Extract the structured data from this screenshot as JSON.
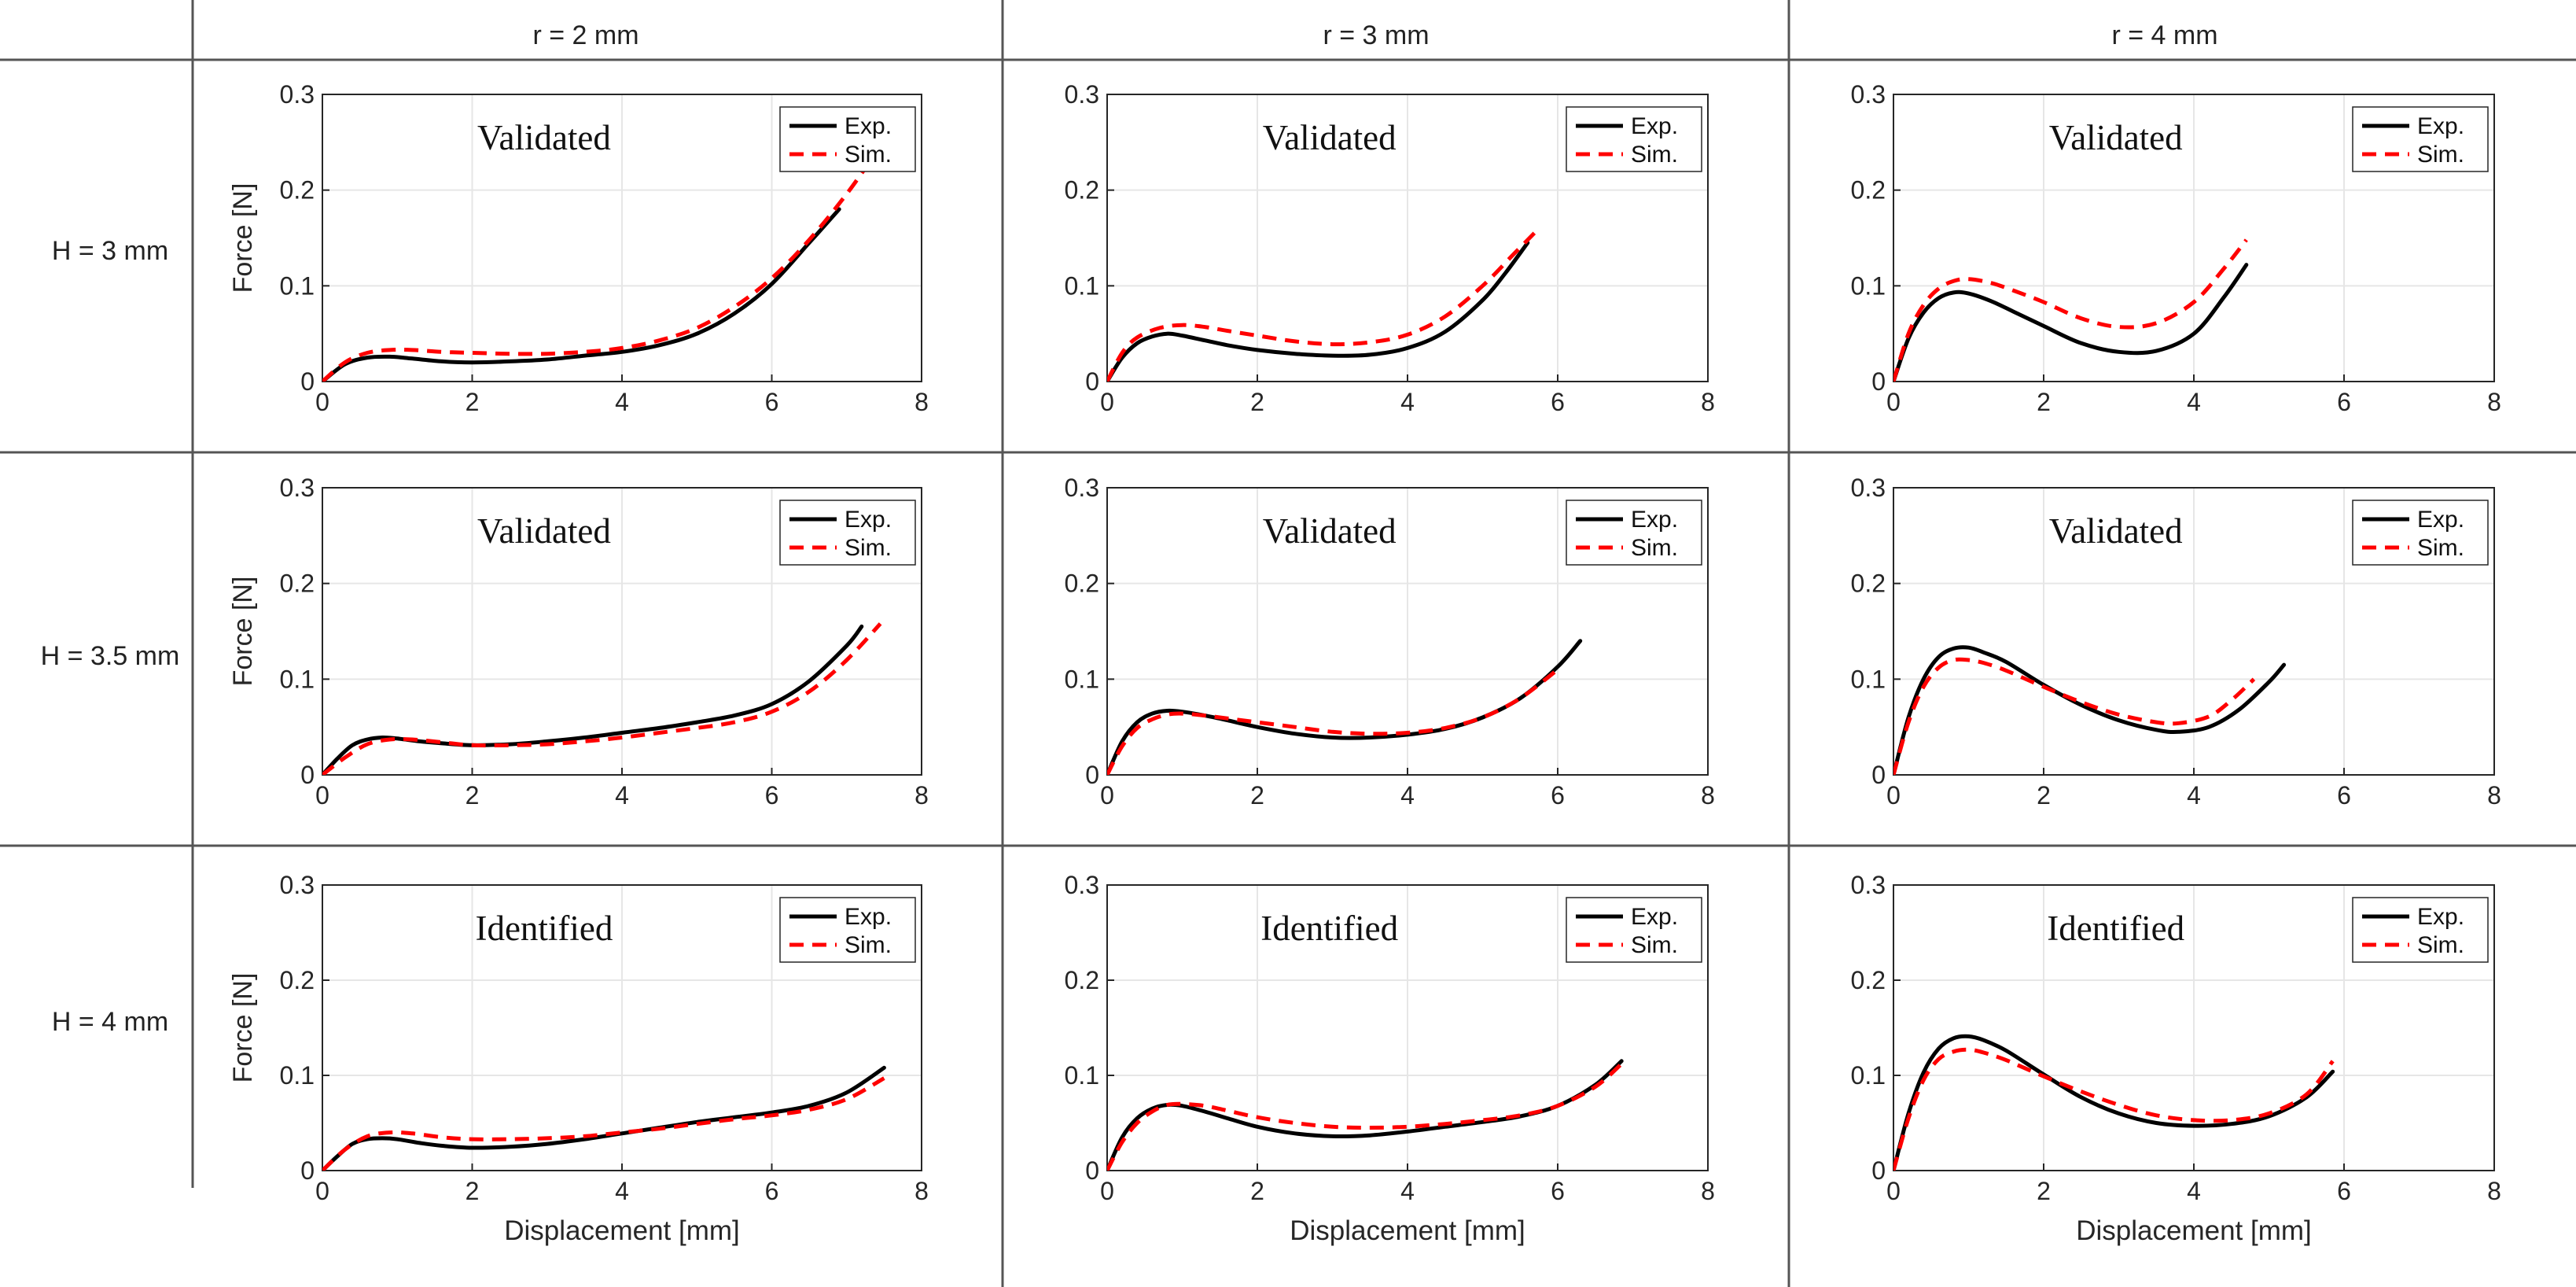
{
  "figure": {
    "column_headers": [
      "r = 2 mm",
      "r = 3 mm",
      "r = 4 mm"
    ],
    "row_headers": [
      "H = 3 mm",
      "H = 3.5 mm",
      "H = 4 mm"
    ],
    "ylabel": "Force [N]",
    "xlabel": "Displacement [mm]",
    "legend": [
      "Exp.",
      "Sim."
    ],
    "colors": {
      "exp": "#000000",
      "sim": "#ff0000",
      "grid": "#e6e6e6",
      "axis": "#262626"
    }
  },
  "chart_data": [
    {
      "type": "line",
      "row": 0,
      "col": 0,
      "annotation": "Validated",
      "xlim": [
        0,
        8
      ],
      "ylim": [
        0,
        0.3
      ],
      "xticks": [
        0,
        2,
        4,
        6,
        8
      ],
      "yticks": [
        0,
        0.1,
        0.2,
        0.3
      ],
      "ylabel": "Force [N]",
      "xlabel": "",
      "series": [
        {
          "name": "Exp.",
          "x": [
            0,
            0.3,
            0.6,
            0.9,
            1.2,
            1.6,
            2,
            2.5,
            3,
            3.5,
            4,
            4.5,
            5,
            5.5,
            6,
            6.5,
            6.9
          ],
          "y": [
            0,
            0.018,
            0.025,
            0.026,
            0.024,
            0.021,
            0.02,
            0.021,
            0.023,
            0.027,
            0.031,
            0.038,
            0.05,
            0.071,
            0.102,
            0.145,
            0.18
          ]
        },
        {
          "name": "Sim.",
          "x": [
            0,
            0.3,
            0.6,
            0.9,
            1.2,
            1.6,
            2,
            2.5,
            3,
            3.5,
            4,
            4.5,
            5,
            5.5,
            6,
            6.5,
            7,
            7.4
          ],
          "y": [
            0,
            0.02,
            0.03,
            0.033,
            0.033,
            0.031,
            0.03,
            0.029,
            0.029,
            0.031,
            0.035,
            0.043,
            0.056,
            0.078,
            0.108,
            0.148,
            0.196,
            0.24
          ]
        }
      ]
    },
    {
      "type": "line",
      "row": 0,
      "col": 1,
      "annotation": "Validated",
      "xlim": [
        0,
        8
      ],
      "ylim": [
        0,
        0.3
      ],
      "xticks": [
        0,
        2,
        4,
        6,
        8
      ],
      "yticks": [
        0,
        0.1,
        0.2,
        0.3
      ],
      "ylabel": "",
      "xlabel": "",
      "series": [
        {
          "name": "Exp.",
          "x": [
            0,
            0.2,
            0.4,
            0.6,
            0.8,
            1,
            1.3,
            1.6,
            2,
            2.5,
            3,
            3.5,
            4,
            4.5,
            5,
            5.3,
            5.6
          ],
          "y": [
            0,
            0.025,
            0.04,
            0.047,
            0.05,
            0.048,
            0.043,
            0.038,
            0.033,
            0.029,
            0.027,
            0.028,
            0.035,
            0.052,
            0.085,
            0.113,
            0.145
          ]
        },
        {
          "name": "Sim.",
          "x": [
            0,
            0.2,
            0.4,
            0.7,
            1,
            1.3,
            1.6,
            2,
            2.5,
            3,
            3.5,
            4,
            4.5,
            5,
            5.4,
            5.7
          ],
          "y": [
            0,
            0.03,
            0.046,
            0.056,
            0.059,
            0.057,
            0.053,
            0.048,
            0.042,
            0.039,
            0.041,
            0.049,
            0.068,
            0.1,
            0.132,
            0.156
          ]
        }
      ]
    },
    {
      "type": "line",
      "row": 0,
      "col": 2,
      "annotation": "Validated",
      "xlim": [
        0,
        8
      ],
      "ylim": [
        0,
        0.3
      ],
      "xticks": [
        0,
        2,
        4,
        6,
        8
      ],
      "yticks": [
        0,
        0.1,
        0.2,
        0.3
      ],
      "ylabel": "",
      "xlabel": "",
      "series": [
        {
          "name": "Exp.",
          "x": [
            0,
            0.2,
            0.4,
            0.6,
            0.8,
            1,
            1.3,
            1.6,
            2,
            2.5,
            3,
            3.5,
            4,
            4.4,
            4.7
          ],
          "y": [
            0,
            0.045,
            0.072,
            0.087,
            0.093,
            0.092,
            0.084,
            0.073,
            0.058,
            0.04,
            0.031,
            0.032,
            0.05,
            0.088,
            0.122
          ]
        },
        {
          "name": "Sim.",
          "x": [
            0,
            0.2,
            0.4,
            0.6,
            0.8,
            1,
            1.3,
            1.6,
            2,
            2.5,
            3,
            3.5,
            4,
            4.4,
            4.7
          ],
          "y": [
            0,
            0.05,
            0.08,
            0.097,
            0.105,
            0.107,
            0.103,
            0.095,
            0.083,
            0.066,
            0.057,
            0.061,
            0.083,
            0.118,
            0.148
          ]
        }
      ]
    },
    {
      "type": "line",
      "row": 1,
      "col": 0,
      "annotation": "Validated",
      "xlim": [
        0,
        8
      ],
      "ylim": [
        0,
        0.3
      ],
      "xticks": [
        0,
        2,
        4,
        6,
        8
      ],
      "yticks": [
        0,
        0.1,
        0.2,
        0.3
      ],
      "ylabel": "Force [N]",
      "xlabel": "",
      "series": [
        {
          "name": "Exp.",
          "x": [
            0,
            0.2,
            0.4,
            0.6,
            0.8,
            1,
            1.3,
            1.6,
            2,
            2.5,
            3,
            3.5,
            4,
            4.5,
            5,
            5.5,
            6,
            6.5,
            7,
            7.2
          ],
          "y": [
            0,
            0.017,
            0.031,
            0.037,
            0.039,
            0.038,
            0.035,
            0.033,
            0.031,
            0.032,
            0.035,
            0.039,
            0.044,
            0.049,
            0.055,
            0.062,
            0.074,
            0.098,
            0.135,
            0.155
          ]
        },
        {
          "name": "Sim.",
          "x": [
            0,
            0.3,
            0.6,
            0.9,
            1.2,
            1.6,
            2,
            2.5,
            3,
            3.5,
            4,
            4.5,
            5,
            5.5,
            6,
            6.5,
            7,
            7.45
          ],
          "y": [
            0,
            0.018,
            0.032,
            0.037,
            0.037,
            0.034,
            0.031,
            0.031,
            0.032,
            0.035,
            0.039,
            0.044,
            0.049,
            0.055,
            0.066,
            0.087,
            0.12,
            0.158
          ]
        }
      ]
    },
    {
      "type": "line",
      "row": 1,
      "col": 1,
      "annotation": "Validated",
      "xlim": [
        0,
        8
      ],
      "ylim": [
        0,
        0.3
      ],
      "xticks": [
        0,
        2,
        4,
        6,
        8
      ],
      "yticks": [
        0,
        0.1,
        0.2,
        0.3
      ],
      "ylabel": "",
      "xlabel": "",
      "series": [
        {
          "name": "Exp.",
          "x": [
            0,
            0.2,
            0.4,
            0.6,
            0.8,
            1,
            1.3,
            1.6,
            2,
            2.5,
            3,
            3.5,
            4,
            4.5,
            5,
            5.5,
            6,
            6.3
          ],
          "y": [
            0,
            0.035,
            0.055,
            0.064,
            0.067,
            0.066,
            0.062,
            0.057,
            0.05,
            0.043,
            0.039,
            0.039,
            0.042,
            0.048,
            0.06,
            0.08,
            0.113,
            0.14
          ]
        },
        {
          "name": "Sim.",
          "x": [
            0,
            0.2,
            0.4,
            0.6,
            0.8,
            1,
            1.3,
            1.6,
            2,
            2.5,
            3,
            3.5,
            4,
            4.5,
            5,
            5.5,
            6
          ],
          "y": [
            0,
            0.03,
            0.049,
            0.058,
            0.063,
            0.064,
            0.062,
            0.059,
            0.055,
            0.05,
            0.045,
            0.043,
            0.044,
            0.049,
            0.06,
            0.08,
            0.11
          ]
        }
      ]
    },
    {
      "type": "line",
      "row": 1,
      "col": 2,
      "annotation": "Validated",
      "xlim": [
        0,
        8
      ],
      "ylim": [
        0,
        0.3
      ],
      "xticks": [
        0,
        2,
        4,
        6,
        8
      ],
      "yticks": [
        0,
        0.1,
        0.2,
        0.3
      ],
      "ylabel": "",
      "xlabel": "",
      "series": [
        {
          "name": "Exp.",
          "x": [
            0,
            0.2,
            0.4,
            0.6,
            0.8,
            1,
            1.2,
            1.5,
            2,
            2.5,
            3,
            3.5,
            3.8,
            4.2,
            4.6,
            5,
            5.2
          ],
          "y": [
            0,
            0.06,
            0.1,
            0.123,
            0.132,
            0.133,
            0.128,
            0.118,
            0.094,
            0.073,
            0.057,
            0.047,
            0.045,
            0.05,
            0.068,
            0.097,
            0.115
          ]
        },
        {
          "name": "Sim.",
          "x": [
            0,
            0.2,
            0.4,
            0.6,
            0.8,
            1,
            1.2,
            1.5,
            2,
            2.5,
            3,
            3.5,
            3.8,
            4.2,
            4.5,
            4.8
          ],
          "y": [
            0,
            0.055,
            0.092,
            0.112,
            0.12,
            0.12,
            0.117,
            0.109,
            0.092,
            0.076,
            0.063,
            0.055,
            0.054,
            0.061,
            0.078,
            0.1
          ]
        }
      ]
    },
    {
      "type": "line",
      "row": 2,
      "col": 0,
      "annotation": "Identified",
      "xlim": [
        0,
        8
      ],
      "ylim": [
        0,
        0.3
      ],
      "xticks": [
        0,
        2,
        4,
        6,
        8
      ],
      "yticks": [
        0,
        0.1,
        0.2,
        0.3
      ],
      "ylabel": "Force [N]",
      "xlabel": "Displacement [mm]",
      "series": [
        {
          "name": "Exp.",
          "x": [
            0,
            0.2,
            0.4,
            0.6,
            0.8,
            1,
            1.3,
            1.6,
            2,
            2.5,
            3,
            3.5,
            4,
            4.5,
            5,
            5.5,
            6,
            6.5,
            7,
            7.5
          ],
          "y": [
            0,
            0.015,
            0.028,
            0.033,
            0.034,
            0.033,
            0.029,
            0.026,
            0.024,
            0.025,
            0.028,
            0.033,
            0.039,
            0.045,
            0.051,
            0.056,
            0.061,
            0.068,
            0.082,
            0.108
          ]
        },
        {
          "name": "Sim.",
          "x": [
            0,
            0.3,
            0.6,
            0.9,
            1.2,
            1.6,
            2,
            2.5,
            3,
            3.5,
            4,
            4.5,
            5,
            5.5,
            6,
            6.5,
            7,
            7.5
          ],
          "y": [
            0,
            0.022,
            0.036,
            0.04,
            0.039,
            0.035,
            0.033,
            0.033,
            0.034,
            0.036,
            0.04,
            0.044,
            0.049,
            0.054,
            0.058,
            0.064,
            0.075,
            0.097
          ]
        }
      ]
    },
    {
      "type": "line",
      "row": 2,
      "col": 1,
      "annotation": "Identified",
      "xlim": [
        0,
        8
      ],
      "ylim": [
        0,
        0.3
      ],
      "xticks": [
        0,
        2,
        4,
        6,
        8
      ],
      "yticks": [
        0,
        0.1,
        0.2,
        0.3
      ],
      "ylabel": "",
      "xlabel": "Displacement [mm]",
      "series": [
        {
          "name": "Exp.",
          "x": [
            0,
            0.2,
            0.4,
            0.6,
            0.8,
            1,
            1.3,
            1.6,
            2,
            2.5,
            3,
            3.5,
            4,
            4.5,
            5,
            5.5,
            6,
            6.5,
            6.85
          ],
          "y": [
            0,
            0.035,
            0.055,
            0.065,
            0.069,
            0.068,
            0.062,
            0.055,
            0.046,
            0.039,
            0.036,
            0.037,
            0.041,
            0.046,
            0.051,
            0.057,
            0.068,
            0.09,
            0.115
          ]
        },
        {
          "name": "Sim.",
          "x": [
            0,
            0.2,
            0.4,
            0.6,
            0.8,
            1,
            1.3,
            1.6,
            2,
            2.5,
            3,
            3.5,
            4,
            4.5,
            5,
            5.5,
            6,
            6.5,
            6.85
          ],
          "y": [
            0,
            0.03,
            0.05,
            0.062,
            0.069,
            0.07,
            0.068,
            0.063,
            0.056,
            0.05,
            0.046,
            0.045,
            0.046,
            0.049,
            0.053,
            0.058,
            0.068,
            0.088,
            0.112
          ]
        }
      ]
    },
    {
      "type": "line",
      "row": 2,
      "col": 2,
      "annotation": "Identified",
      "xlim": [
        0,
        8
      ],
      "ylim": [
        0,
        0.3
      ],
      "xticks": [
        0,
        2,
        4,
        6,
        8
      ],
      "yticks": [
        0,
        0.1,
        0.2,
        0.3
      ],
      "ylabel": "",
      "xlabel": "Displacement [mm]",
      "series": [
        {
          "name": "Exp.",
          "x": [
            0,
            0.2,
            0.4,
            0.6,
            0.8,
            1,
            1.2,
            1.5,
            2,
            2.5,
            3,
            3.5,
            4,
            4.5,
            5,
            5.5,
            5.85
          ],
          "y": [
            0,
            0.06,
            0.103,
            0.128,
            0.139,
            0.141,
            0.137,
            0.126,
            0.101,
            0.077,
            0.06,
            0.05,
            0.047,
            0.049,
            0.057,
            0.077,
            0.104
          ]
        },
        {
          "name": "Sim.",
          "x": [
            0,
            0.2,
            0.4,
            0.6,
            0.8,
            1,
            1.2,
            1.5,
            2,
            2.5,
            3,
            3.5,
            4,
            4.5,
            5,
            5.5,
            5.85
          ],
          "y": [
            0,
            0.055,
            0.095,
            0.117,
            0.125,
            0.127,
            0.124,
            0.116,
            0.099,
            0.083,
            0.069,
            0.058,
            0.053,
            0.053,
            0.06,
            0.08,
            0.115
          ]
        }
      ]
    }
  ]
}
